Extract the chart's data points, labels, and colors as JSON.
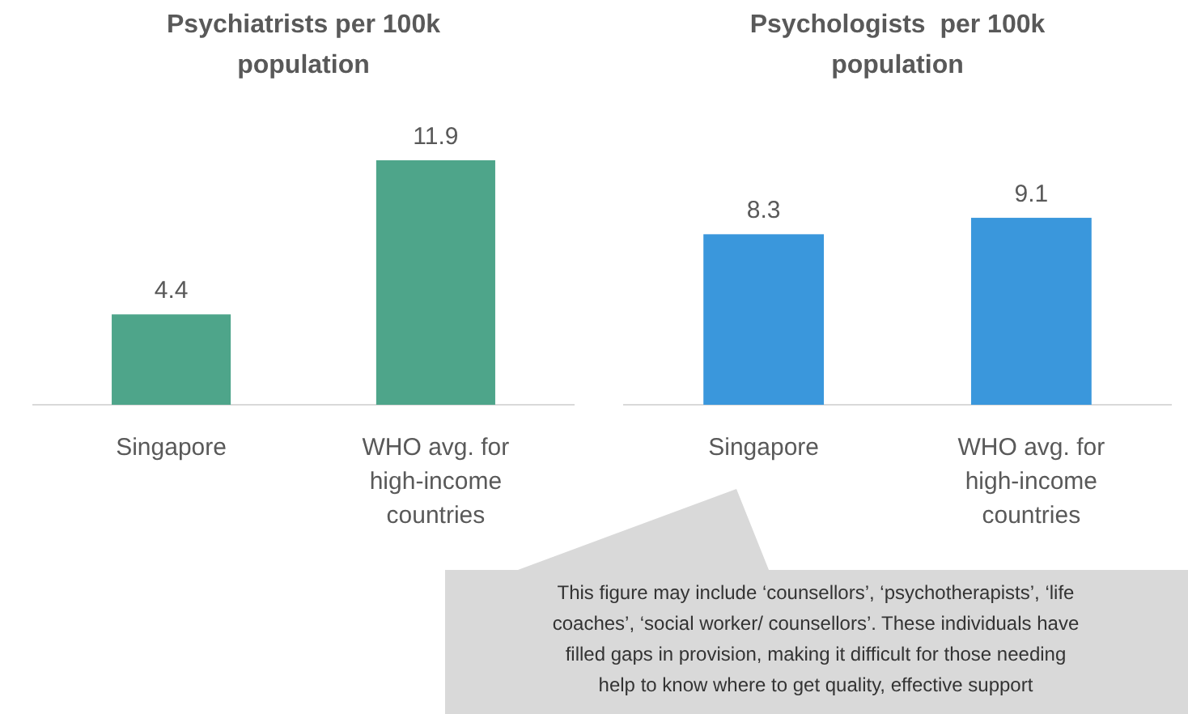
{
  "chart_data": [
    {
      "type": "bar",
      "title": "Psychiatrists per 100k population",
      "categories": [
        "Singapore",
        "WHO avg. for high-income countries"
      ],
      "values": [
        4.4,
        11.9
      ],
      "color": "#4ea58a",
      "data_labels": true
    },
    {
      "type": "bar",
      "title": "Psychologists  per 100k population",
      "categories": [
        "Singapore",
        "WHO avg. for high-income countries"
      ],
      "values": [
        8.3,
        9.1
      ],
      "color": "#3a97dc",
      "data_labels": true,
      "annotations": [
        "This figure may include ‘counsellors’, ‘psychotherapists’, ‘life coaches’, ‘social worker/ counsellors’. These individuals have filled gaps in provision, making it difficult for those needing help to know where to get quality, effective support"
      ]
    }
  ]
}
